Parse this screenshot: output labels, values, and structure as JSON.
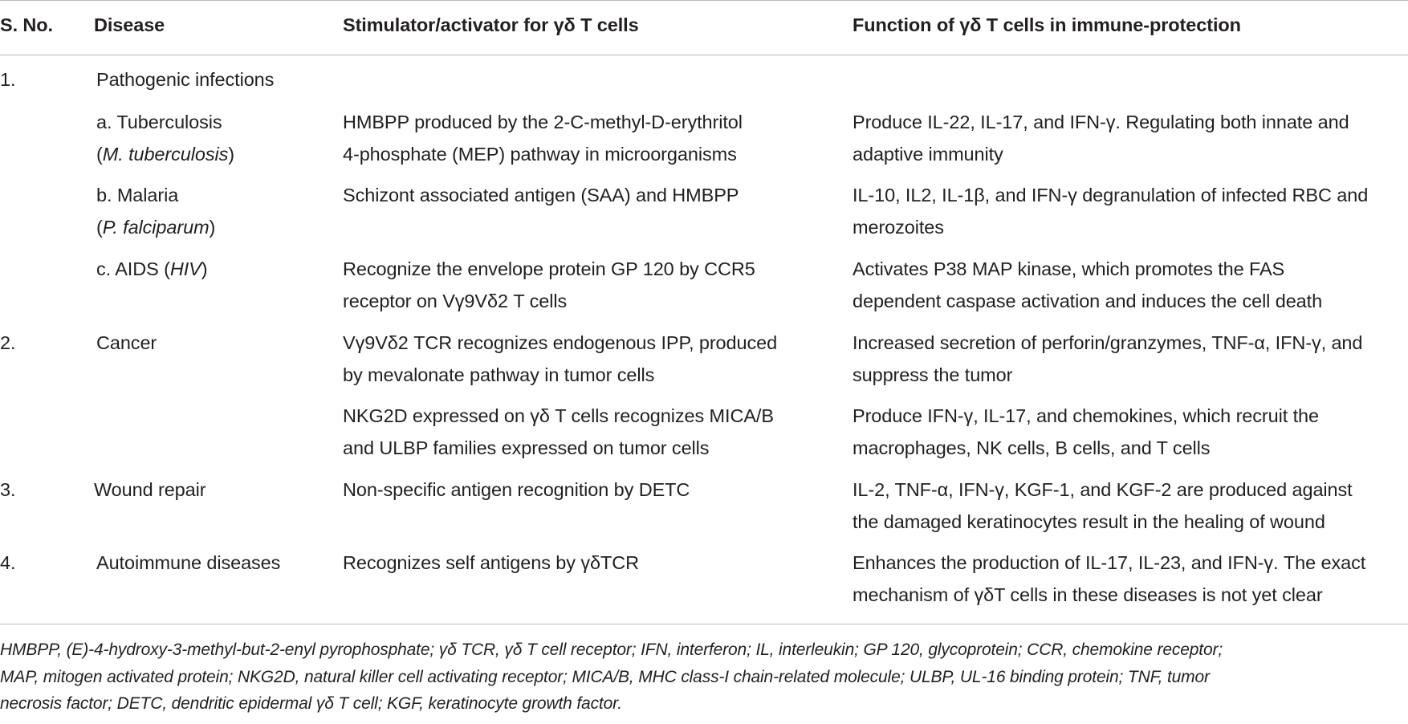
{
  "headers": {
    "sno": "S. No.",
    "disease": "Disease",
    "stimulator": "Stimulator/activator for γδ T cells",
    "function": "Function of γδ T cells in immune-protection"
  },
  "rows": {
    "r1": {
      "sno": "1.",
      "disease": "Pathogenic infections"
    },
    "tb": {
      "disease_line1": "a. Tuberculosis",
      "disease_paren_open": "(",
      "disease_italic": "M. tuberculosis",
      "disease_paren_close": ")",
      "stim_line1": "HMBPP produced by the 2-C-methyl-D-erythritol",
      "stim_line2": "4-phosphate (MEP) pathway in microorganisms",
      "func_line1": "Produce IL-22, IL-17, and IFN-γ. Regulating both innate and",
      "func_line2": "adaptive immunity"
    },
    "malaria": {
      "disease_line1": "b. Malaria",
      "disease_paren_open": "(",
      "disease_italic": "P. falciparum",
      "disease_paren_close": ")",
      "stim_line1": "Schizont associated antigen (SAA) and HMBPP",
      "func_line1": "IL-10, IL2, IL-1β, and IFN-γ degranulation of infected RBC and",
      "func_line2": "merozoites"
    },
    "aids": {
      "disease_prefix": "c. AIDS (",
      "disease_italic": "HIV",
      "disease_paren_close": ")",
      "stim_line1": "Recognize the envelope protein GP 120 by CCR5",
      "stim_line2": "receptor on Vγ9Vδ2 T cells",
      "func_line1": "Activates P38 MAP kinase, which promotes the FAS",
      "func_line2": "dependent caspase activation and induces the cell death"
    },
    "cancer": {
      "sno": "2.",
      "disease": "Cancer",
      "stim_a_line1": "Vγ9Vδ2 TCR recognizes endogenous IPP, produced",
      "stim_a_line2": "by mevalonate pathway in tumor cells",
      "func_a_line1": "Increased secretion of perforin/granzymes, TNF-α, IFN-γ, and",
      "func_a_line2": "suppress the tumor",
      "stim_b_line1": "NKG2D expressed on γδ T cells recognizes MICA/B",
      "stim_b_line2": "and ULBP families expressed on tumor cells",
      "func_b_line1": "Produce IFN-γ, IL-17, and chemokines, which recruit the",
      "func_b_line2": "macrophages, NK cells, B cells, and T cells"
    },
    "wound": {
      "sno": "3.",
      "disease": "Wound repair",
      "stim_line1": "Non-specific antigen recognition by DETC",
      "func_line1": "IL-2, TNF-α, IFN-γ, KGF-1, and KGF-2 are produced against",
      "func_line2": "the damaged keratinocytes result in the healing of wound"
    },
    "autoimmune": {
      "sno": "4.",
      "disease": "Autoimmune diseases",
      "stim_line1": "Recognizes self antigens by γδTCR",
      "func_line1": "Enhances the production of IL-17, IL-23, and IFN-γ. The exact",
      "func_line2": "mechanism of γδT cells in these diseases is not yet clear"
    }
  },
  "footnote": {
    "line1": "HMBPP, (E)-4-hydroxy-3-methyl-but-2-enyl pyrophosphate; γδ TCR, γδ T cell receptor; IFN, interferon; IL, interleukin; GP 120, glycoprotein; CCR, chemokine receptor;",
    "line2": "MAP, mitogen activated protein; NKG2D, natural killer cell activating receptor; MICA/B, MHC class-I chain-related molecule; ULBP, UL-16 binding protein; TNF, tumor",
    "line3": "necrosis factor; DETC, dendritic epidermal γδ T cell; KGF, keratinocyte growth factor."
  }
}
